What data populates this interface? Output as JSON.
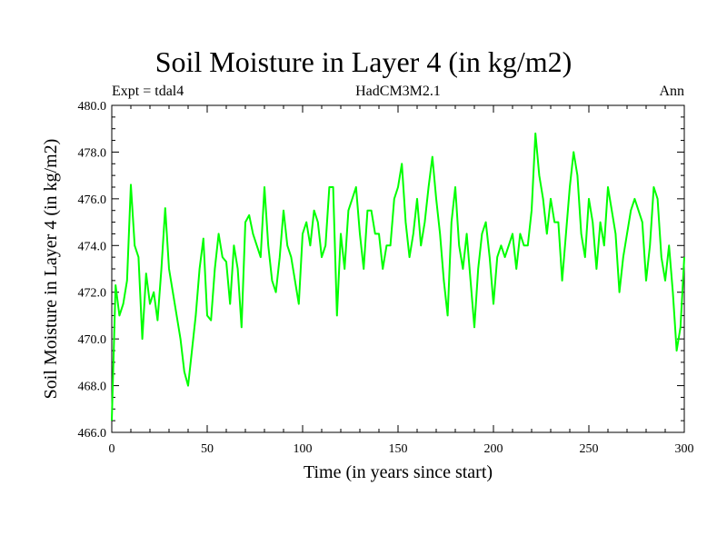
{
  "chart_data": {
    "type": "line",
    "title": "Soil Moisture in Layer 4 (in kg/m2)",
    "subtitle_left": "Expt = tdal4",
    "subtitle_center": "HadCM3M2.1",
    "subtitle_right": "Ann",
    "xlabel": "Time (in years since start)",
    "ylabel": "Soil Moisture in Layer 4 (in kg/m2)",
    "xlim": [
      0,
      300
    ],
    "ylim": [
      466,
      480
    ],
    "xticks": [
      0,
      50,
      100,
      150,
      200,
      250,
      300
    ],
    "yticks": [
      "466.0",
      "468.0",
      "470.0",
      "472.0",
      "474.0",
      "476.0",
      "478.0",
      "480.0"
    ],
    "line_color": "#00ff00",
    "series": [
      {
        "name": "Soil Moisture",
        "x": [
          0,
          2,
          4,
          6,
          8,
          10,
          12,
          14,
          16,
          18,
          20,
          22,
          24,
          26,
          28,
          30,
          32,
          34,
          36,
          38,
          40,
          42,
          44,
          46,
          48,
          50,
          52,
          54,
          56,
          58,
          60,
          62,
          64,
          66,
          68,
          70,
          72,
          74,
          76,
          78,
          80,
          82,
          84,
          86,
          88,
          90,
          92,
          94,
          96,
          98,
          100,
          102,
          104,
          106,
          108,
          110,
          112,
          114,
          116,
          118,
          120,
          122,
          124,
          126,
          128,
          130,
          132,
          134,
          136,
          138,
          140,
          142,
          144,
          146,
          148,
          150,
          152,
          154,
          156,
          158,
          160,
          162,
          164,
          166,
          168,
          170,
          172,
          174,
          176,
          178,
          180,
          182,
          184,
          186,
          188,
          190,
          192,
          194,
          196,
          198,
          200,
          202,
          204,
          206,
          208,
          210,
          212,
          214,
          216,
          218,
          220,
          222,
          224,
          226,
          228,
          230,
          232,
          234,
          236,
          238,
          240,
          242,
          244,
          246,
          248,
          250,
          252,
          254,
          256,
          258,
          260,
          262,
          264,
          266,
          268,
          270,
          272,
          274,
          276,
          278,
          280,
          282,
          284,
          286,
          288,
          290,
          292,
          294,
          296,
          298,
          300
        ],
        "values": [
          466.5,
          472.3,
          471.0,
          471.5,
          472.5,
          476.6,
          474.0,
          473.5,
          470.0,
          472.8,
          471.5,
          472.0,
          470.8,
          473.0,
          475.6,
          473.0,
          472.0,
          471.0,
          470.0,
          468.6,
          468.0,
          469.5,
          471.0,
          473.0,
          474.3,
          471.0,
          470.8,
          473.0,
          474.5,
          473.5,
          473.3,
          471.5,
          474.0,
          473.0,
          470.5,
          475.0,
          475.3,
          474.5,
          474.0,
          473.5,
          476.5,
          474.0,
          472.5,
          472.0,
          473.5,
          475.5,
          474.0,
          473.5,
          472.5,
          471.5,
          474.5,
          475.0,
          474.0,
          475.5,
          475.0,
          473.5,
          474.0,
          476.5,
          476.5,
          471.0,
          474.5,
          473.0,
          475.5,
          476.0,
          476.5,
          474.5,
          473.0,
          475.5,
          475.5,
          474.5,
          474.5,
          473.0,
          474.0,
          474.0,
          476.0,
          476.5,
          477.5,
          475.0,
          473.5,
          474.5,
          476.0,
          474.0,
          475.0,
          476.5,
          477.8,
          476.0,
          474.5,
          472.5,
          471.0,
          475.0,
          476.5,
          474.0,
          473.0,
          474.5,
          472.5,
          470.5,
          473.0,
          474.5,
          475.0,
          473.5,
          471.5,
          473.5,
          474.0,
          473.5,
          474.0,
          474.5,
          473.0,
          474.5,
          474.0,
          474.0,
          475.5,
          478.8,
          477.0,
          476.0,
          474.5,
          476.0,
          475.0,
          475.0,
          472.5,
          474.5,
          476.5,
          478.0,
          477.0,
          474.5,
          473.5,
          476.0,
          475.0,
          473.0,
          475.0,
          474.0,
          476.5,
          475.5,
          474.5,
          472.0,
          473.5,
          474.5,
          475.5,
          476.0,
          475.5,
          475.0,
          472.5,
          474.0,
          476.5,
          476.0,
          473.5,
          472.5,
          474.0,
          472.0,
          469.5,
          470.5,
          473.5
        ]
      }
    ]
  }
}
